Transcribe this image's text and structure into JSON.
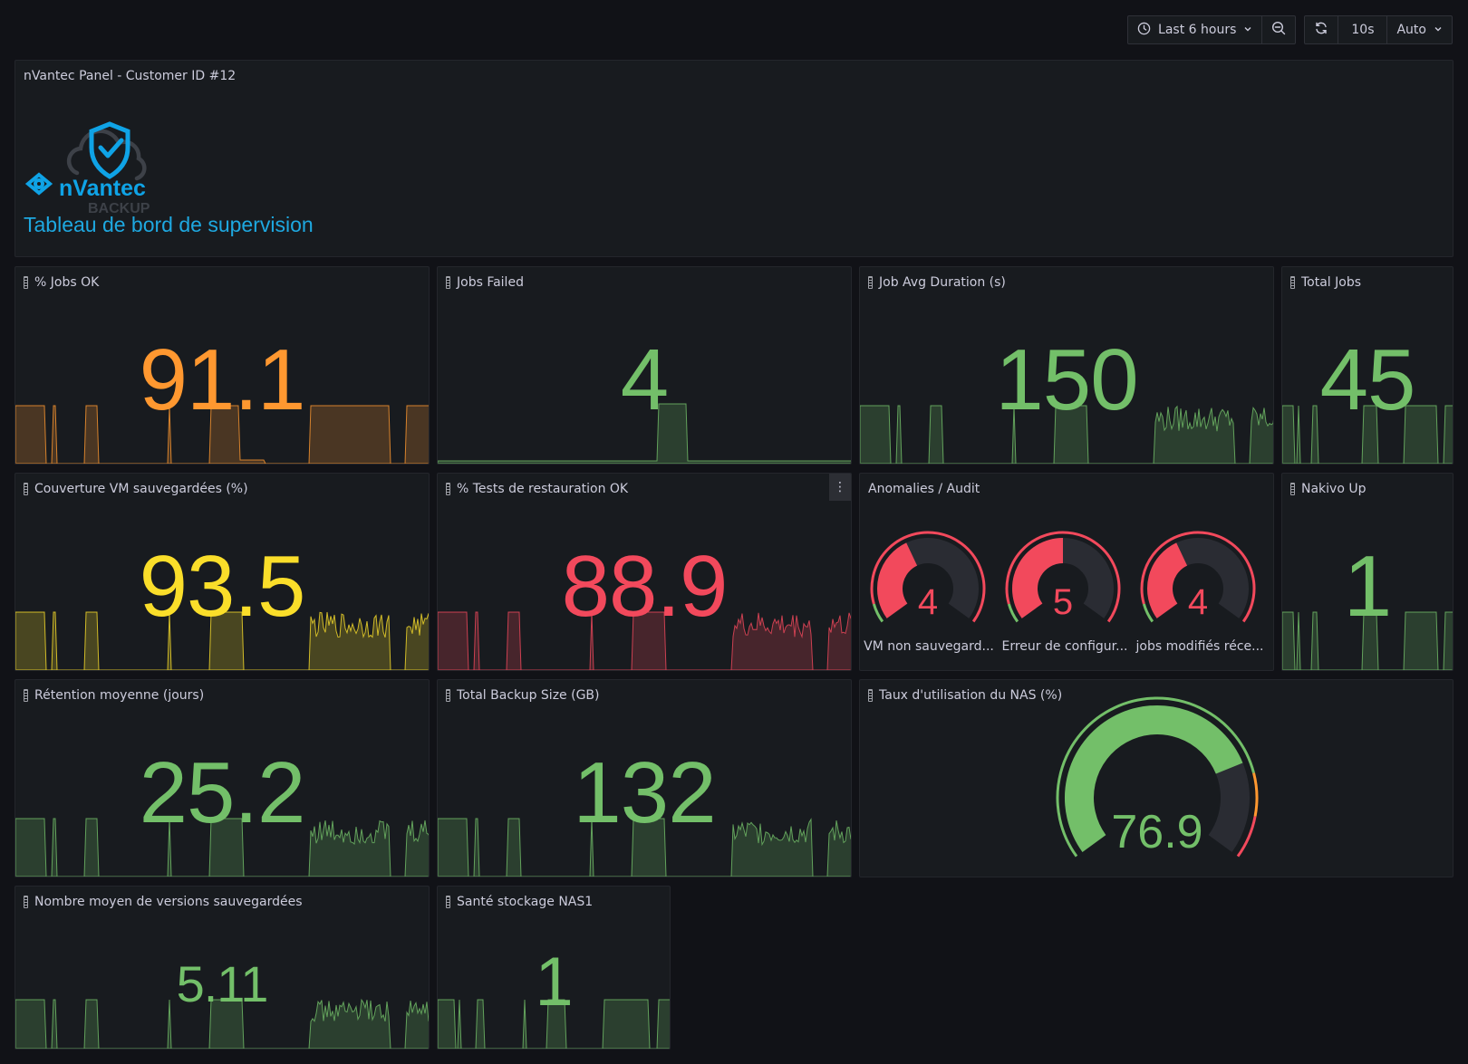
{
  "toolbar": {
    "time_range": "Last 6 hours",
    "refresh_interval": "10s",
    "auto_label": "Auto"
  },
  "header_panel": {
    "title": "nVantec Panel - Customer ID #12",
    "logo_text": "nVantec",
    "logo_subtext": "BACKUP",
    "heading": "Tableau de bord de supervision"
  },
  "colors": {
    "green": "#73bf69",
    "orange": "#ff9830",
    "yellow": "#fade2a",
    "red": "#f2495c",
    "panel_bg": "#181b1f",
    "page_bg": "#111217",
    "heading": "#1ea8e0"
  },
  "stats": [
    {
      "title": "% Jobs OK",
      "value": "91.1",
      "color": "#ff9830",
      "datasource_icon": true
    },
    {
      "title": "Jobs Failed",
      "value": "4",
      "color": "#73bf69",
      "datasource_icon": true
    },
    {
      "title": "Job Avg Duration (s)",
      "value": "150",
      "color": "#73bf69",
      "datasource_icon": true
    },
    {
      "title": "Total Jobs",
      "value": "45",
      "color": "#73bf69",
      "datasource_icon": true
    },
    {
      "title": "Couverture VM sauvegardées (%)",
      "value": "93.5",
      "color": "#fade2a",
      "datasource_icon": true
    },
    {
      "title": "% Tests de restauration OK",
      "value": "88.9",
      "color": "#f2495c",
      "datasource_icon": true
    },
    {
      "title": "Nakivo Up",
      "value": "1",
      "color": "#73bf69",
      "datasource_icon": true
    },
    {
      "title": "Rétention moyenne (jours)",
      "value": "25.2",
      "color": "#73bf69",
      "datasource_icon": true
    },
    {
      "title": "Total Backup Size (GB)",
      "value": "132",
      "color": "#73bf69",
      "datasource_icon": true
    },
    {
      "title": "Nombre moyen de versions sauvegardées",
      "value": "5.11",
      "color": "#73bf69",
      "datasource_icon": true
    },
    {
      "title": "Santé stockage NAS1",
      "value": "1",
      "color": "#73bf69",
      "datasource_icon": true
    }
  ],
  "anomalies": {
    "title": "Anomalies / Audit",
    "gauges": [
      {
        "label": "VM non sauvegard...",
        "value": "4",
        "fraction": 0.4
      },
      {
        "label": "Erreur de configur...",
        "value": "5",
        "fraction": 0.5
      },
      {
        "label": "jobs modifiés réce...",
        "value": "4",
        "fraction": 0.4
      }
    ]
  },
  "nas_usage": {
    "title": "Taux d'utilisation du NAS (%)",
    "value": "76.9",
    "percent": 76.9,
    "thresholds": [
      {
        "from": 0,
        "to": 80,
        "color": "#73bf69"
      },
      {
        "from": 80,
        "to": 90,
        "color": "#ff9830"
      },
      {
        "from": 90,
        "to": 100,
        "color": "#f2495c"
      }
    ]
  }
}
